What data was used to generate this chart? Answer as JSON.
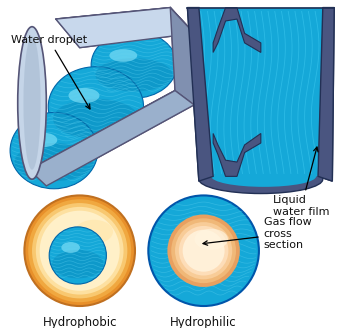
{
  "bg_color": "#ffffff",
  "label_water_droplet": "Water droplet",
  "label_liquid_water_film": "Liquid\nwater film",
  "label_gas_flow": "Gas flow\ncross\nsection",
  "label_hydrophobic": "Hydrophobic",
  "label_hydrophilic": "Hydrophilic",
  "text_color": "#111111",
  "tube_wall_color": "#b8cde8",
  "tube_wall_dark": "#7090b0",
  "tube_wall_edge": "#444466",
  "water_blue": "#15a8d8",
  "water_blue_dark": "#0077aa",
  "water_blue_light": "#55ddff",
  "water_blue_mid": "#00bbee",
  "orange_outer": "#f5a832",
  "orange_inner_light": "#ffd090",
  "orange_center": "#ffcc88",
  "sphere_edge": "#0066aa"
}
